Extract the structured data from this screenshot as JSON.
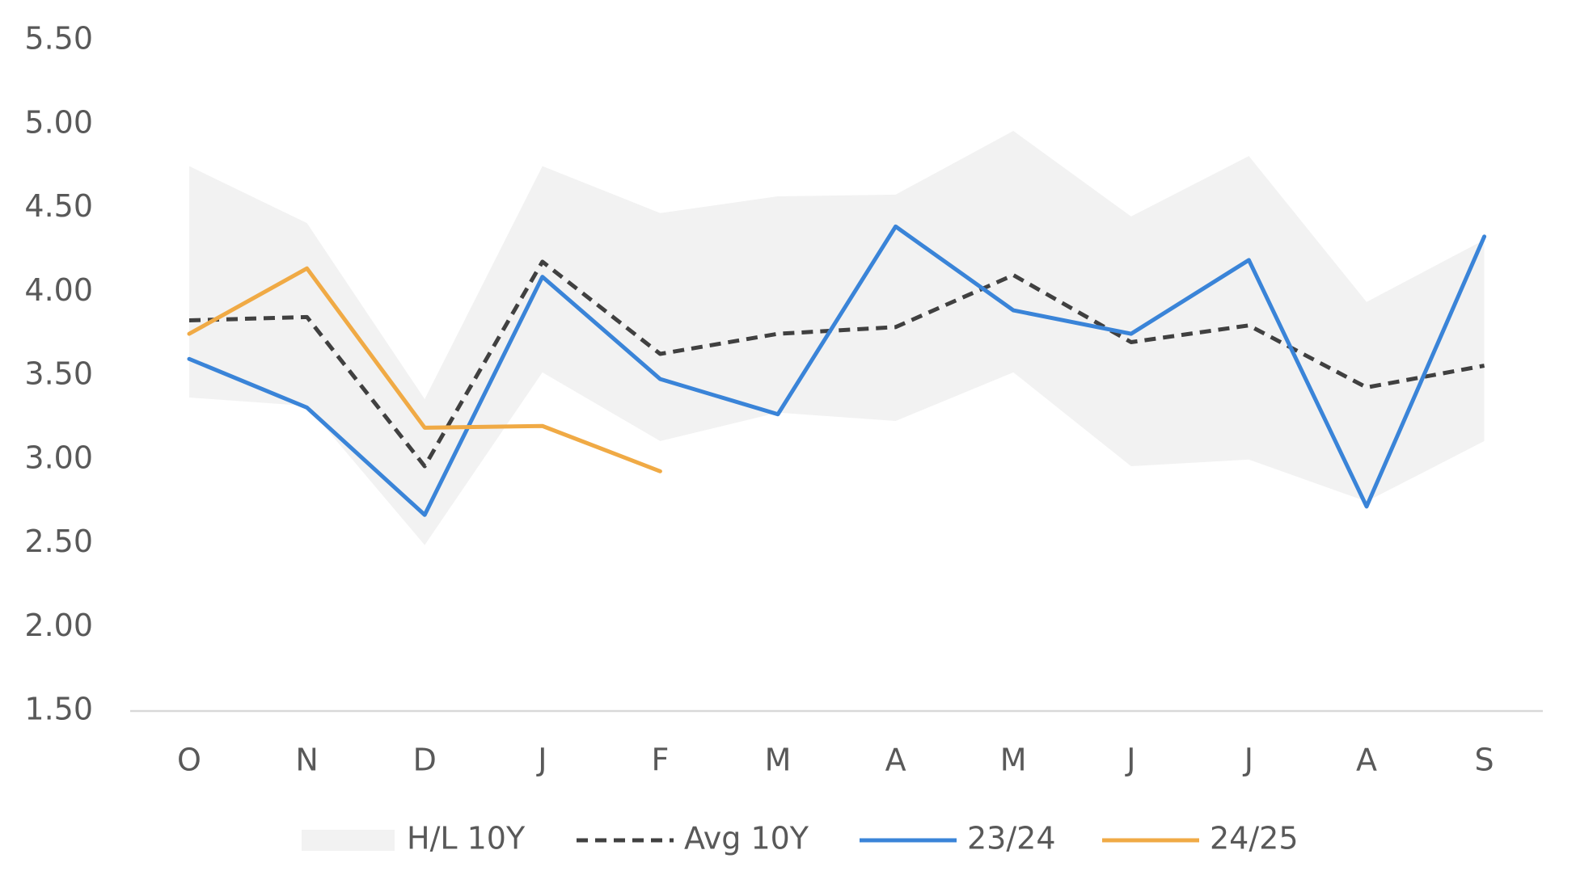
{
  "chart_data": {
    "type": "line",
    "categories": [
      "O",
      "N",
      "D",
      "J",
      "F",
      "M",
      "A",
      "M",
      "J",
      "J",
      "A",
      "S"
    ],
    "ylim": [
      1.5,
      5.5
    ],
    "yticks": [
      {
        "value": 1.5,
        "label": "1.50"
      },
      {
        "value": 2,
        "label": "2.00"
      },
      {
        "value": 2.5,
        "label": "2.50"
      },
      {
        "value": 3,
        "label": "3.00"
      },
      {
        "value": 3.5,
        "label": "3.50"
      },
      {
        "value": 4,
        "label": "4.00"
      },
      {
        "value": 4.5,
        "label": "4.50"
      },
      {
        "value": 5,
        "label": "5.00"
      },
      {
        "value": 5.5,
        "label": "5.50"
      }
    ],
    "legend": "bottom",
    "series": [
      {
        "name": "H/L 10Y",
        "color": "#f2f2f2",
        "kind": "band",
        "high": [
          4.75,
          4.41,
          3.36,
          4.75,
          4.47,
          4.57,
          4.58,
          4.96,
          4.45,
          4.81,
          3.94,
          4.31
        ],
        "low": [
          3.37,
          3.32,
          2.49,
          3.52,
          3.11,
          3.28,
          3.23,
          3.52,
          2.96,
          3.0,
          2.75,
          3.11
        ]
      },
      {
        "name": "Avg 10Y",
        "color": "#404040",
        "dashed": true,
        "values": [
          3.83,
          3.85,
          2.96,
          4.18,
          3.63,
          3.75,
          3.79,
          4.1,
          3.7,
          3.8,
          3.43,
          3.56
        ]
      },
      {
        "name": "23/24",
        "color": "#3a84d8",
        "values": [
          3.6,
          3.31,
          2.67,
          4.09,
          3.48,
          3.27,
          4.39,
          3.89,
          3.75,
          4.19,
          2.72,
          4.33
        ]
      },
      {
        "name": "24/25",
        "color": "#f0aa45",
        "values": [
          3.75,
          4.14,
          3.19,
          3.2,
          2.93,
          null,
          null,
          null,
          null,
          null,
          null,
          null
        ]
      }
    ]
  }
}
